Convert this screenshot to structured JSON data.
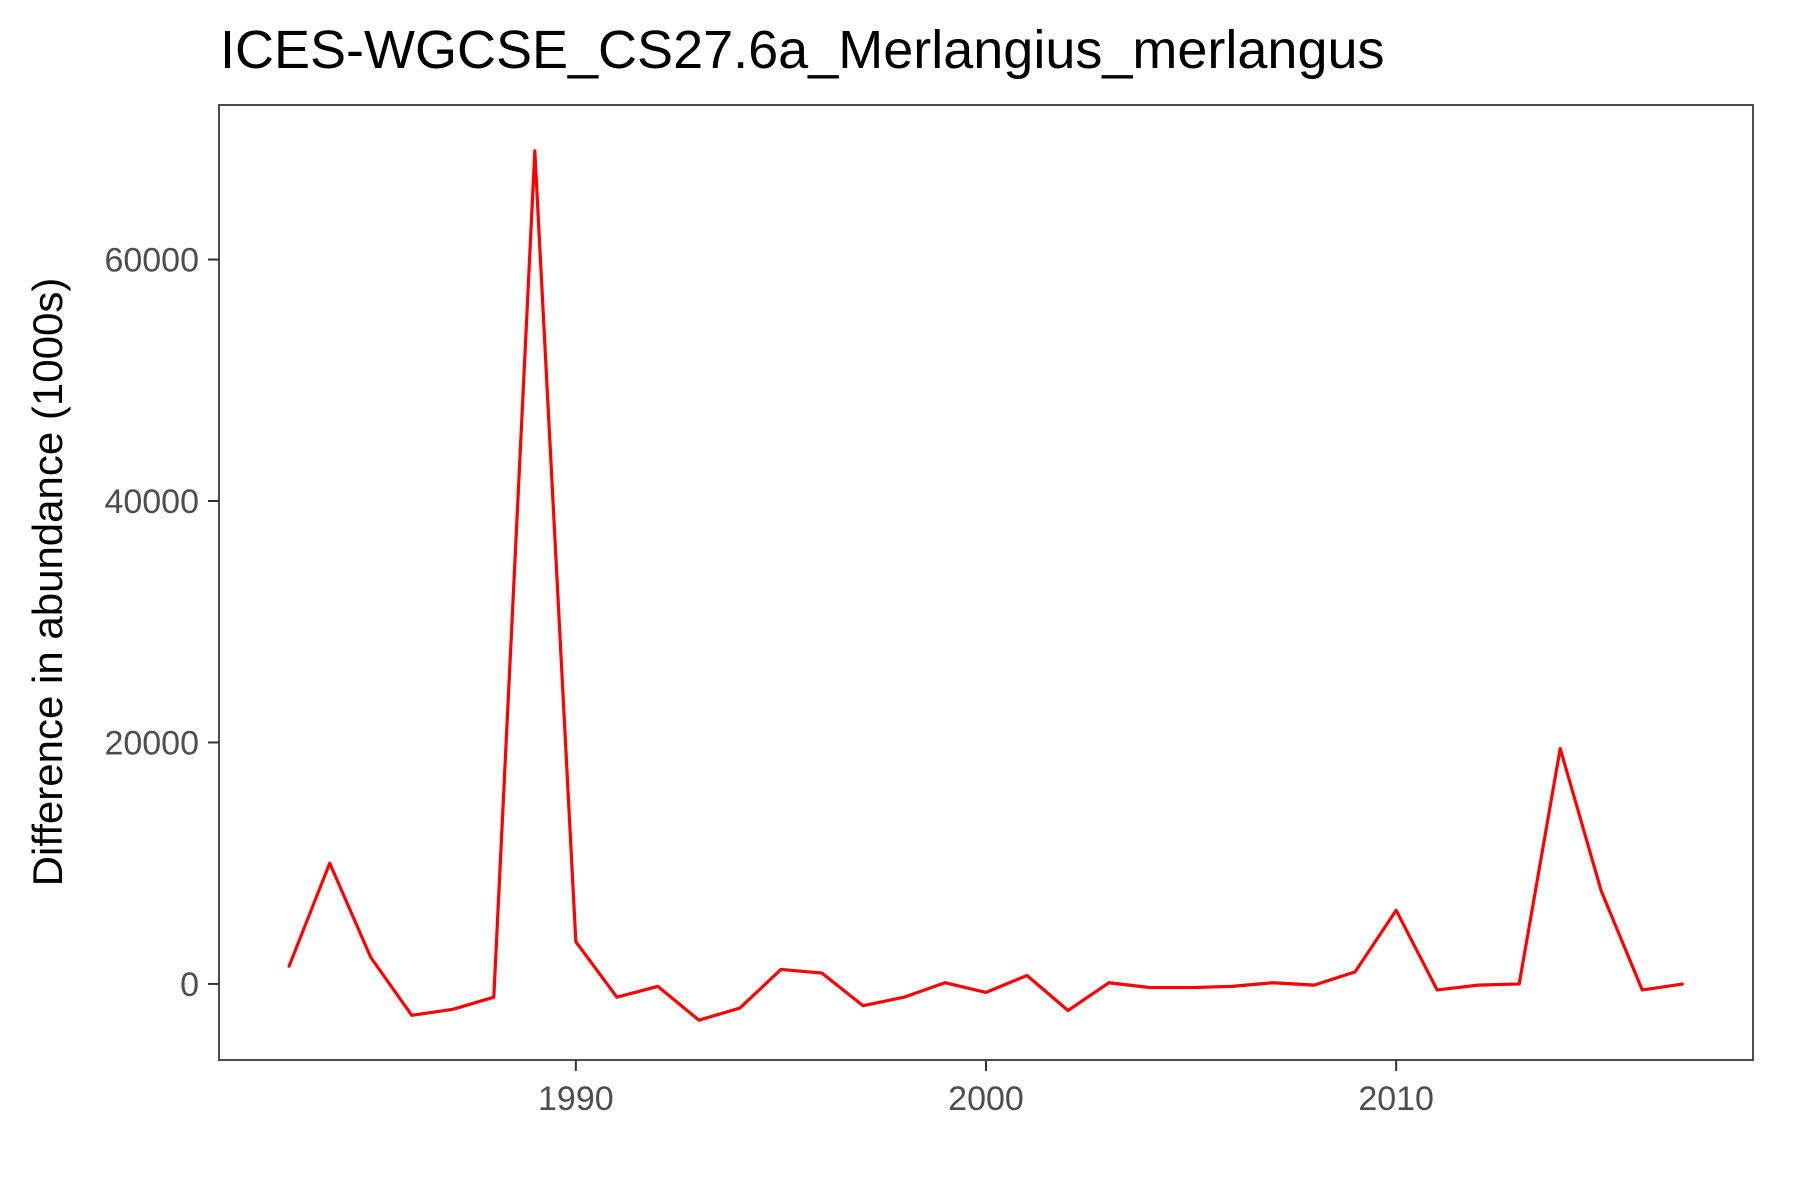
{
  "chart_data": {
    "type": "line",
    "title": "ICES-WGCSE_CS27.6a_Merlangius_merlangus",
    "xlabel": "",
    "ylabel": "Difference in abundance (1000s)",
    "xlim": [
      1981.3,
      2018.7
    ],
    "ylim": [
      -6300,
      72800
    ],
    "x_ticks": [
      1990,
      2000,
      2010
    ],
    "y_ticks": [
      0,
      20000,
      40000,
      60000
    ],
    "grid": false,
    "legend": "none",
    "line_color": "#ff0000",
    "series": [
      {
        "x": [
          1983,
          1984,
          1985,
          1986,
          1987,
          1988,
          1989,
          1990,
          1991,
          1992,
          1993,
          1994,
          1995,
          1996,
          1997,
          1998,
          1999,
          2000,
          2001,
          2002,
          2003,
          2004,
          2005,
          2006,
          2007,
          2008,
          2009,
          2010,
          2011,
          2012,
          2013,
          2014,
          2015,
          2016,
          2017
        ],
        "values": [
          1400,
          10000,
          2200,
          -2600,
          -2100,
          -1100,
          69000,
          3500,
          -1100,
          -200,
          -3000,
          -2000,
          1200,
          900,
          -1800,
          -1100,
          100,
          -700,
          700,
          -2200,
          100,
          -300,
          -300,
          -200,
          100,
          -100,
          1000,
          6100,
          -500,
          -100,
          0,
          19500,
          7700,
          -500,
          0
        ]
      }
    ]
  }
}
